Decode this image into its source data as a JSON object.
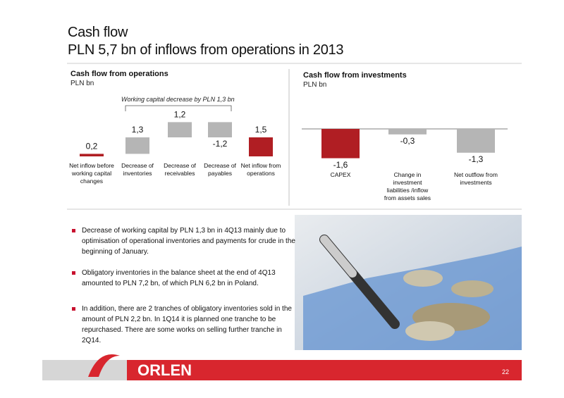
{
  "title": "Cash flow",
  "subtitle": "PLN 5,7 bn of inflows from operations in 2013",
  "chart_data": [
    {
      "type": "waterfall",
      "title": "Cash flow from operations",
      "subtitle": "PLN bn",
      "annotation": "Working capital decrease by PLN 1,3 bn",
      "categories": [
        "Net inflow before working capital changes",
        "Decrease of inventories",
        "Decrease of receivables",
        "Decrease of payables",
        "Net inflow from operations"
      ],
      "values": [
        0.2,
        1.3,
        1.2,
        -1.2,
        1.5
      ],
      "value_labels": [
        "0,2",
        "1,3",
        "1,2",
        "-1,2",
        "1,5"
      ],
      "colors": [
        "#b01e23",
        "#b5b5b5",
        "#b5b5b5",
        "#b5b5b5",
        "#b01e23"
      ],
      "ylim": [
        0,
        3
      ]
    },
    {
      "type": "bar",
      "title": "Cash flow from investments",
      "subtitle": "PLN bn",
      "categories": [
        "CAPEX",
        "Change in investment liabilities /inflow from assets sales",
        "Net outflow from investments"
      ],
      "values": [
        -1.6,
        -0.3,
        -1.3
      ],
      "value_labels": [
        "-1,6",
        "-0,3",
        "-1,3"
      ],
      "colors": [
        "#b01e23",
        "#b5b5b5",
        "#b5b5b5"
      ],
      "ylim": [
        -2,
        0
      ]
    }
  ],
  "bullets": [
    "Decrease of working capital by PLN 1,3 bn in 4Q13 mainly due to optimisation of operational inventories and payments for crude in the beginning of January.",
    "Obligatory inventories in the balance sheet at the end of 4Q13 amounted to PLN 7,2 bn, of which PLN 6,2 bn in Poland.",
    "In addition, there are 2 tranches of obligatory inventories sold in the amount of PLN 2,2 bn. In 1Q14 it is planned one tranche to be repurchased. There are some works on selling further tranche in 2Q14."
  ],
  "footer": {
    "logo": "ORLEN",
    "page": "22"
  }
}
